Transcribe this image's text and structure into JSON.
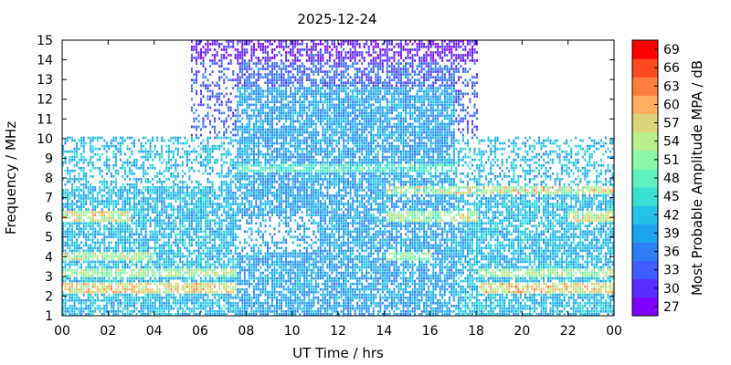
{
  "chart_data": {
    "type": "heatmap",
    "title": "2025-12-24",
    "xlabel": "UT Time / hrs",
    "ylabel": "Frequency / MHz",
    "colorbar_label": "Most Probable Amplitude MPA / dB",
    "xlim": [
      0,
      24
    ],
    "ylim": [
      1,
      15
    ],
    "x_ticks": [
      "00",
      "02",
      "04",
      "06",
      "08",
      "10",
      "12",
      "14",
      "16",
      "18",
      "20",
      "22",
      "00"
    ],
    "y_ticks": [
      1,
      2,
      3,
      4,
      5,
      6,
      7,
      8,
      9,
      10,
      11,
      12,
      13,
      14,
      15
    ],
    "colorbar": {
      "range": [
        27,
        69
      ],
      "ticks": [
        27,
        30,
        33,
        36,
        39,
        42,
        45,
        48,
        51,
        54,
        57,
        60,
        63,
        66,
        69
      ],
      "colors": [
        "#7f00ff",
        "#5a2bff",
        "#3f5cff",
        "#2e7ff5",
        "#1aa3ef",
        "#22c3e6",
        "#3ae0d2",
        "#5ff0c0",
        "#8cf7a6",
        "#b8f08c",
        "#dcd47a",
        "#ffad5e",
        "#ff7f3f",
        "#ff4a1f",
        "#ff0000"
      ]
    },
    "grid": false,
    "regions": {
      "night_baseline": "freq 1-10 MHz, 00-07.5 h and 18-24 h, mostly 39-45 dB",
      "day_extended": "freq 1-12.5 MHz, 07.5-17 h, mostly 36-45 dB",
      "high_band": "freq 12-15 MHz, 05.5-18 h, mostly 27-36 dB",
      "strong_bands": [
        {
          "freq": 2.3,
          "hours": "00-07, 18-24",
          "level": "54-66 dB"
        },
        {
          "freq": 3.1,
          "hours": "00-07, 18-24",
          "level": "48-57 dB"
        },
        {
          "freq": 4.0,
          "hours": "00-04, 14-16",
          "level": "51-60 dB"
        },
        {
          "freq": 6.0,
          "hours": "00-03, 14-18, 22-24",
          "level": "51-63 dB"
        },
        {
          "freq": 7.3,
          "hours": "14-18, 20-24",
          "level": "48-63 dB"
        }
      ]
    }
  }
}
